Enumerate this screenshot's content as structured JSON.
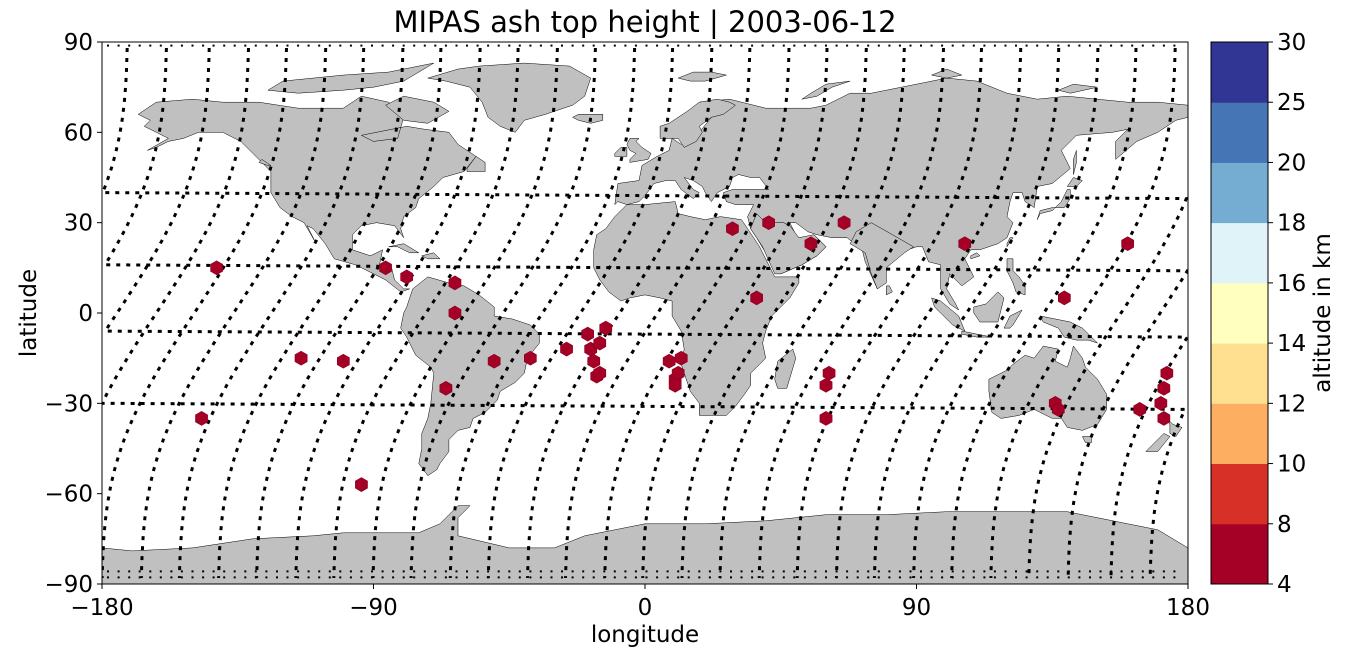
{
  "title": "MIPAS ash top height | 2003-06-12",
  "chart_data": {
    "type": "scatter",
    "title": "MIPAS ash top height | 2003-06-12",
    "xlabel": "longitude",
    "ylabel": "latitude",
    "xlim": [
      -180,
      180
    ],
    "ylim": [
      -90,
      90
    ],
    "xticks": [
      -180,
      -90,
      0,
      90,
      180
    ],
    "yticks": [
      -90,
      -60,
      -30,
      0,
      30,
      60,
      90
    ],
    "xtick_labels": [
      "−180",
      "−90",
      "0",
      "90",
      "180"
    ],
    "ytick_labels": [
      "−90",
      "−60",
      "−30",
      "0",
      "30",
      "60",
      "90"
    ],
    "grid": false,
    "land_color": "#c0c0c0",
    "track_color": "#000000",
    "colorbar": {
      "label": "altitude in km",
      "boundaries": [
        4,
        8,
        10,
        12,
        14,
        16,
        18,
        20,
        25,
        30
      ],
      "tick_labels": [
        "4",
        "8",
        "10",
        "12",
        "14",
        "16",
        "18",
        "20",
        "25",
        "30"
      ],
      "colors": [
        "#a50026",
        "#d73027",
        "#f46d43",
        "#fdae61",
        "#fee090",
        "#ffffbf",
        "#e0f3f8",
        "#abd9e9",
        "#74add1",
        "#4575b4",
        "#313695"
      ]
    },
    "series": [
      {
        "marker": "hexagon",
        "color": "#a50026",
        "points": [
          [
            -142,
            15
          ],
          [
            -147,
            -35
          ],
          [
            -114,
            -15
          ],
          [
            -100,
            -16
          ],
          [
            -94,
            -57
          ],
          [
            -86,
            15
          ],
          [
            -79,
            12
          ],
          [
            -63,
            10
          ],
          [
            -63,
            0
          ],
          [
            -66,
            -25
          ],
          [
            -50,
            -16
          ],
          [
            -38,
            -15
          ],
          [
            -26,
            -12
          ],
          [
            -19,
            -7
          ],
          [
            -18,
            -12
          ],
          [
            -17,
            -16
          ],
          [
            -16,
            -21
          ],
          [
            -15,
            -20
          ],
          [
            -15,
            -10
          ],
          [
            -13,
            -5
          ],
          [
            8,
            -16
          ],
          [
            10,
            -22
          ],
          [
            10,
            -24
          ],
          [
            11,
            -20
          ],
          [
            12,
            -15
          ],
          [
            29,
            28
          ],
          [
            37,
            5
          ],
          [
            41,
            30
          ],
          [
            55,
            23
          ],
          [
            60,
            -24
          ],
          [
            60,
            -35
          ],
          [
            61,
            -20
          ],
          [
            66,
            30
          ],
          [
            106,
            23
          ],
          [
            136,
            -30
          ],
          [
            137,
            -32
          ],
          [
            139,
            5
          ],
          [
            160,
            23
          ],
          [
            164,
            -32
          ],
          [
            171,
            -30
          ],
          [
            172,
            -35
          ],
          [
            172,
            -25
          ],
          [
            173,
            -20
          ]
        ]
      }
    ]
  }
}
